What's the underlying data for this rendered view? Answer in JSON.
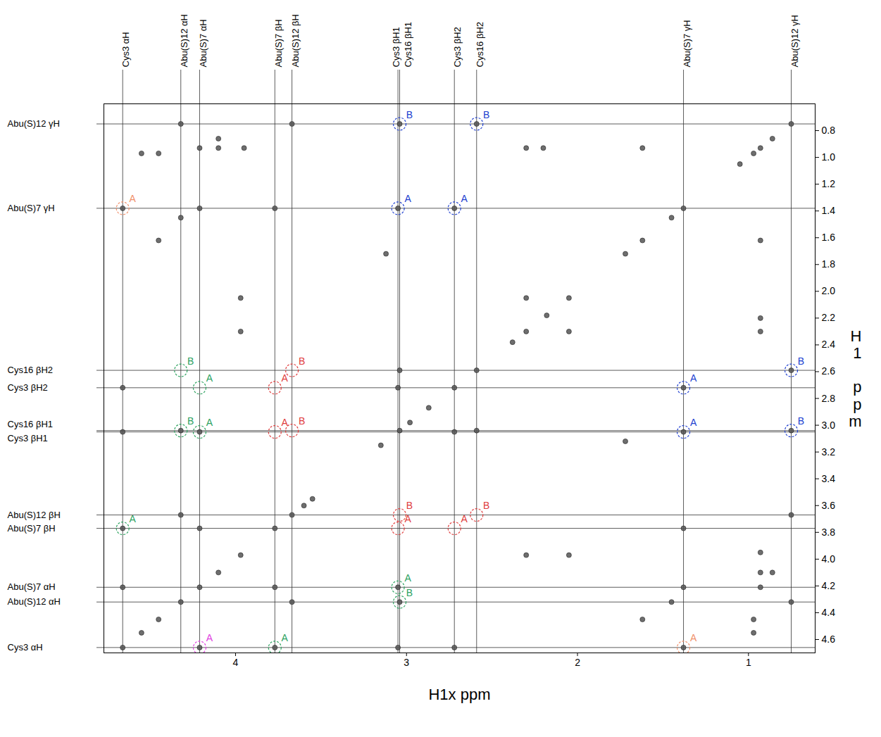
{
  "chart_data": {
    "type": "scatter",
    "x_label": "H1x ppm",
    "y_label": "H1 ppm",
    "xlim": [
      4.77,
      0.61
    ],
    "ylim": [
      4.7,
      0.6
    ],
    "xticks": [
      4,
      3,
      2,
      1
    ],
    "yticks": [
      0.8,
      {
        "value": 1,
        "label": "1.0"
      },
      1.2,
      1.4,
      1.6,
      1.8,
      {
        "value": 2,
        "label": "2.0"
      },
      2.2,
      2.4,
      2.6,
      2.8,
      {
        "value": 3,
        "label": "3.0"
      },
      3.2,
      3.4,
      3.6,
      3.8,
      {
        "value": 4,
        "label": "4.0"
      },
      4.2,
      4.4,
      4.6
    ],
    "color": "#555555",
    "x": [
      0.75,
      0.86,
      0.93,
      0.97,
      1.05,
      1.38,
      1.45,
      1.62,
      1.72,
      2.05,
      2.18,
      2.3,
      2.38,
      2.59,
      2.72,
      2.87,
      2.98,
      3.04,
      3.15,
      3.55,
      3.6,
      3.67,
      3.77,
      3.97,
      4.1,
      4.21,
      4.32,
      4.45,
      4.55,
      4.66,
      0.75,
      0.75,
      0.75,
      0.75,
      1.38,
      1.38,
      1.38,
      1.38,
      1.38,
      3.05,
      3.04,
      4.66,
      4.66,
      4.21,
      4.32,
      4.21,
      3.77,
      4.21,
      4.32,
      0.93,
      0.93,
      0.93,
      0.93,
      0.93,
      0.93,
      0.97,
      0.97,
      1.45,
      2.05,
      2.3,
      2.05,
      1.62,
      1.72,
      0.86,
      4.32,
      3.67,
      3.04,
      2.59,
      4.21,
      3.77,
      3.05,
      2.72,
      4.66,
      2.72,
      2.59,
      3.05,
      2.72,
      3.77,
      3.67,
      4.66,
      4.66,
      3.05,
      3.04,
      4.21,
      4.1,
      3.95,
      2.3,
      2.2,
      1.62,
      4.55,
      4.45,
      4.32,
      3.97,
      3.97,
      2.3,
      4.45,
      3.12,
      4.1
    ],
    "y": [
      0.75,
      0.86,
      0.93,
      0.97,
      1.05,
      1.38,
      1.45,
      1.62,
      1.72,
      2.05,
      2.18,
      2.3,
      2.38,
      2.59,
      2.72,
      2.87,
      2.98,
      3.04,
      3.15,
      3.55,
      3.6,
      3.67,
      3.77,
      3.97,
      4.1,
      4.21,
      4.32,
      4.45,
      4.55,
      4.66,
      4.32,
      3.67,
      3.04,
      2.59,
      4.21,
      3.77,
      3.05,
      2.72,
      4.66,
      2.72,
      2.59,
      3.05,
      2.72,
      3.77,
      3.67,
      4.66,
      4.66,
      3.05,
      3.04,
      4.21,
      4.1,
      3.95,
      2.3,
      2.2,
      1.62,
      4.55,
      4.45,
      4.32,
      3.97,
      3.97,
      2.3,
      4.45,
      3.12,
      4.1,
      0.75,
      0.75,
      0.75,
      0.75,
      1.38,
      1.38,
      1.38,
      1.38,
      1.38,
      3.05,
      3.04,
      4.66,
      4.66,
      4.21,
      4.32,
      4.21,
      3.77,
      4.21,
      4.32,
      0.93,
      0.93,
      0.93,
      0.93,
      0.93,
      0.93,
      0.97,
      0.97,
      1.45,
      2.05,
      2.3,
      2.05,
      1.62,
      1.72,
      0.86
    ],
    "assignments": [
      {
        "name": "Cys3 αH",
        "value": 4.66
      },
      {
        "name": "Abu(S)12 αH",
        "value": 4.32
      },
      {
        "name": "Abu(S)7 αH",
        "value": 4.21
      },
      {
        "name": "Abu(S)7 βH",
        "value": 3.77
      },
      {
        "name": "Abu(S)12 βH",
        "value": 3.67
      },
      {
        "name": "Cys3 βH1",
        "value": 3.05
      },
      {
        "name": "Cys16 βH1",
        "value": 3.04
      },
      {
        "name": "Cys3 βH2",
        "value": 2.72
      },
      {
        "name": "Cys16 βH2",
        "value": 2.59
      },
      {
        "name": "Abu(S)7 γH",
        "value": 1.38
      },
      {
        "name": "Abu(S)12 γH",
        "value": 0.75
      }
    ],
    "annotations": [
      {
        "x": 4.66,
        "y": 1.38,
        "label": "A",
        "color": "#f0906a"
      },
      {
        "x": 1.38,
        "y": 4.66,
        "label": "A",
        "color": "#f0906a"
      },
      {
        "x": 3.04,
        "y": 0.75,
        "label": "B",
        "color": "#2040d0"
      },
      {
        "x": 2.59,
        "y": 0.75,
        "label": "B",
        "color": "#2040d0"
      },
      {
        "x": 3.05,
        "y": 1.38,
        "label": "A",
        "color": "#2040d0"
      },
      {
        "x": 2.72,
        "y": 1.38,
        "label": "A",
        "color": "#2040d0"
      },
      {
        "x": 1.38,
        "y": 2.72,
        "label": "A",
        "color": "#2040d0"
      },
      {
        "x": 1.38,
        "y": 3.05,
        "label": "A",
        "color": "#2040d0"
      },
      {
        "x": 0.75,
        "y": 2.59,
        "label": "B",
        "color": "#2040d0"
      },
      {
        "x": 0.75,
        "y": 3.04,
        "label": "B",
        "color": "#2040d0"
      },
      {
        "x": 4.32,
        "y": 2.59,
        "label": "B",
        "color": "#2ca25f"
      },
      {
        "x": 4.32,
        "y": 3.04,
        "label": "B",
        "color": "#2ca25f"
      },
      {
        "x": 4.21,
        "y": 2.72,
        "label": "A",
        "color": "#2ca25f"
      },
      {
        "x": 4.21,
        "y": 3.05,
        "label": "A",
        "color": "#2ca25f"
      },
      {
        "x": 4.66,
        "y": 3.77,
        "label": "A",
        "color": "#2ca25f"
      },
      {
        "x": 3.05,
        "y": 4.21,
        "label": "A",
        "color": "#2ca25f"
      },
      {
        "x": 3.04,
        "y": 4.32,
        "label": "B",
        "color": "#2ca25f"
      },
      {
        "x": 3.77,
        "y": 4.66,
        "label": "A",
        "color": "#2ca25f"
      },
      {
        "x": 3.77,
        "y": 2.72,
        "label": "A",
        "color": "#e03c3c"
      },
      {
        "x": 3.77,
        "y": 3.05,
        "label": "A",
        "color": "#e03c3c"
      },
      {
        "x": 3.67,
        "y": 2.59,
        "label": "B",
        "color": "#e03c3c"
      },
      {
        "x": 3.67,
        "y": 3.04,
        "label": "B",
        "color": "#e03c3c"
      },
      {
        "x": 3.05,
        "y": 3.77,
        "label": "A",
        "color": "#e03c3c"
      },
      {
        "x": 2.72,
        "y": 3.77,
        "label": "A",
        "color": "#e03c3c"
      },
      {
        "x": 3.04,
        "y": 3.67,
        "label": "B",
        "color": "#e03c3c"
      },
      {
        "x": 2.59,
        "y": 3.67,
        "label": "B",
        "color": "#e03c3c"
      },
      {
        "x": 4.21,
        "y": 4.66,
        "label": "A",
        "color": "#e040e0"
      }
    ]
  }
}
